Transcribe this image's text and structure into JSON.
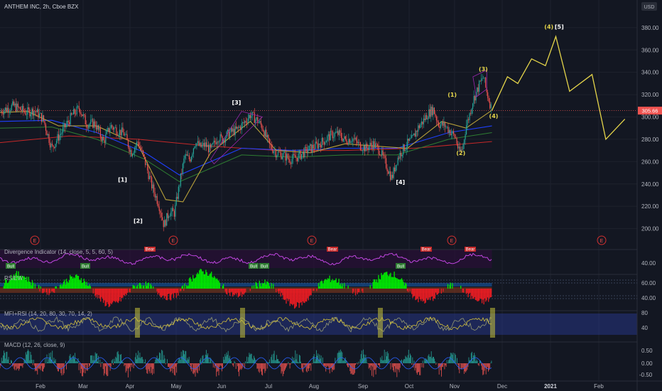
{
  "header": {
    "title": "ANTHEM INC, 2h, Cboe BZX",
    "currency": "USD"
  },
  "price_marker": "305.66",
  "colors": {
    "bg": "#131722",
    "grid": "#1e222d",
    "up": "#26a69a",
    "down": "#ef5350",
    "wave": "#e5d54a",
    "purple": "#9c27b0",
    "green_ind": "#00e600",
    "red_ind": "#e51c23"
  },
  "events": [
    "E",
    "E",
    "E",
    "E",
    "E",
    "E"
  ],
  "panes": {
    "divergence": {
      "label": "Divergence Indicator (14, close, 5, 5, 60, 5)",
      "tick": "40.00",
      "bull_tags": [
        "Bull",
        "Bull",
        "Bull",
        "Bull",
        "Bull"
      ],
      "bear_tags": [
        "Bear",
        "Bear",
        "Bear",
        "Bear"
      ]
    },
    "rsiew": {
      "label": "RSIEW -",
      "ticks": [
        "60.00",
        "40.00"
      ]
    },
    "mfirsi": {
      "label": "MFI+RSI (14, 20, 80, 30, 70, 14, 2)",
      "ticks": [
        "80",
        "40"
      ]
    },
    "macd": {
      "label": "MACD (12, 26, close, 9)",
      "ticks": [
        "0.50",
        "0.00",
        "-0.50"
      ]
    }
  },
  "chart_data": {
    "type": "line",
    "title": "ANTHEM INC, 2h, Cboe BZX",
    "y_ticks": [
      380,
      360,
      340,
      320,
      300,
      280,
      260,
      240,
      220,
      200
    ],
    "y_tick_labels": [
      "380.00",
      "360.00",
      "340.00",
      "320.00",
      "300.00",
      "280.00",
      "260.00",
      "240.00",
      "220.00",
      "200.00"
    ],
    "x_tick_labels": [
      "Feb",
      "Mar",
      "Apr",
      "May",
      "Jun",
      "Jul",
      "Aug",
      "Sep",
      "Oct",
      "Nov",
      "Dec",
      "2021",
      "Feb"
    ],
    "ylim": [
      187,
      392
    ],
    "last_price": 305.66,
    "price_path": [
      [
        0,
        305
      ],
      [
        8,
        310
      ],
      [
        15,
        304
      ],
      [
        20,
        306
      ],
      [
        25,
        298
      ],
      [
        30,
        272
      ],
      [
        33,
        280
      ],
      [
        38,
        292
      ],
      [
        42,
        302
      ],
      [
        46,
        308
      ],
      [
        50,
        294
      ],
      [
        55,
        294
      ],
      [
        60,
        278
      ],
      [
        64,
        292
      ],
      [
        68,
        288
      ],
      [
        72,
        285
      ],
      [
        76,
        268
      ],
      [
        80,
        278
      ],
      [
        84,
        260
      ],
      [
        88,
        238
      ],
      [
        92,
        222
      ],
      [
        95,
        203
      ],
      [
        98,
        215
      ],
      [
        101,
        214
      ],
      [
        104,
        240
      ],
      [
        107,
        265
      ],
      [
        110,
        262
      ],
      [
        113,
        278
      ],
      [
        116,
        273
      ],
      [
        119,
        275
      ],
      [
        122,
        270
      ],
      [
        126,
        282
      ],
      [
        129,
        280
      ],
      [
        133,
        286
      ],
      [
        137,
        288
      ],
      [
        141,
        294
      ],
      [
        145,
        302
      ],
      [
        149,
        297
      ],
      [
        152,
        291
      ],
      [
        156,
        275
      ],
      [
        160,
        268
      ],
      [
        164,
        266
      ],
      [
        168,
        262
      ],
      [
        172,
        264
      ],
      [
        176,
        268
      ],
      [
        180,
        272
      ],
      [
        184,
        275
      ],
      [
        188,
        279
      ],
      [
        192,
        284
      ],
      [
        196,
        285
      ],
      [
        200,
        279
      ],
      [
        204,
        281
      ],
      [
        208,
        275
      ],
      [
        212,
        272
      ],
      [
        216,
        276
      ],
      [
        220,
        270
      ],
      [
        224,
        256
      ],
      [
        227,
        245
      ],
      [
        230,
        262
      ],
      [
        233,
        270
      ],
      [
        236,
        276
      ],
      [
        239,
        280
      ],
      [
        242,
        290
      ],
      [
        245,
        296
      ],
      [
        248,
        303
      ],
      [
        251,
        307
      ],
      [
        254,
        294
      ],
      [
        258,
        292
      ],
      [
        262,
        285
      ],
      [
        264,
        281
      ],
      [
        266,
        268
      ],
      [
        268,
        272
      ],
      [
        270,
        292
      ],
      [
        272,
        302
      ],
      [
        274,
        315
      ],
      [
        276,
        322
      ],
      [
        278,
        330
      ],
      [
        280,
        336
      ],
      [
        282,
        322
      ],
      [
        285,
        306
      ]
    ],
    "sma_short": [
      [
        0,
        304
      ],
      [
        16,
        305
      ],
      [
        34,
        292
      ],
      [
        56,
        292
      ],
      [
        80,
        275
      ],
      [
        96,
        226
      ],
      [
        106,
        224
      ],
      [
        122,
        268
      ],
      [
        145,
        296
      ],
      [
        160,
        270
      ],
      [
        180,
        268
      ],
      [
        200,
        276
      ],
      [
        216,
        274
      ],
      [
        236,
        272
      ],
      [
        256,
        296
      ],
      [
        270,
        290
      ],
      [
        285,
        306
      ]
    ],
    "sma_mid": [
      [
        0,
        296
      ],
      [
        30,
        297
      ],
      [
        56,
        286
      ],
      [
        84,
        268
      ],
      [
        104,
        248
      ],
      [
        140,
        272
      ],
      [
        170,
        270
      ],
      [
        200,
        272
      ],
      [
        230,
        272
      ],
      [
        260,
        286
      ],
      [
        285,
        292
      ]
    ],
    "sma_long": [
      [
        0,
        277
      ],
      [
        40,
        283
      ],
      [
        80,
        280
      ],
      [
        120,
        274
      ],
      [
        160,
        270
      ],
      [
        200,
        270
      ],
      [
        240,
        272
      ],
      [
        270,
        276
      ],
      [
        285,
        278
      ]
    ],
    "projection": [
      [
        285,
        306
      ],
      [
        294,
        336
      ],
      [
        300,
        330
      ],
      [
        308,
        352
      ],
      [
        316,
        346
      ],
      [
        322,
        372
      ],
      [
        330,
        323
      ],
      [
        343,
        338
      ],
      [
        351,
        280
      ],
      [
        362,
        298
      ]
    ],
    "wave_labels": [
      {
        "text": "[1]",
        "t": 71,
        "p": 242
      },
      {
        "text": "[2]",
        "t": 80,
        "p": 205
      },
      {
        "text": "[3]",
        "t": 137,
        "p": 311
      },
      {
        "text": "[4]",
        "t": 232,
        "p": 240
      },
      {
        "text": "(1)",
        "t": 262,
        "p": 318
      },
      {
        "text": "(2)",
        "t": 267,
        "p": 266
      },
      {
        "text": "(3)",
        "t": 280,
        "p": 341
      },
      {
        "text": "(4)",
        "t": 286,
        "p": 299
      },
      {
        "text": "(4)",
        "t": 318,
        "p": 379
      },
      {
        "text": "[5]",
        "t": 324,
        "p": 379
      }
    ]
  }
}
